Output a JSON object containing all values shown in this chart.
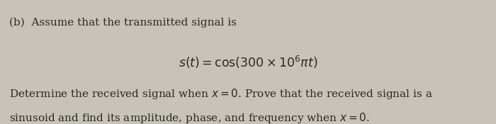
{
  "bg_color": "#c8c2b8",
  "part_label": "(b)",
  "line1": "  Assume that the transmitted signal is",
  "equation": "$s(t) = \\mathrm{cos}(300 \\times 10^6\\pi t)$",
  "line3": "Determine the received signal when $x = 0$. Prove that the received signal is a",
  "line4": "sinusoid and find its amplitude, phase, and frequency when $x = 0$.",
  "font_size_body": 11.0,
  "font_size_eq": 12.5,
  "text_color": "#2a2a2a",
  "figwidth": 7.0,
  "figheight": 1.75,
  "dpi": 100
}
